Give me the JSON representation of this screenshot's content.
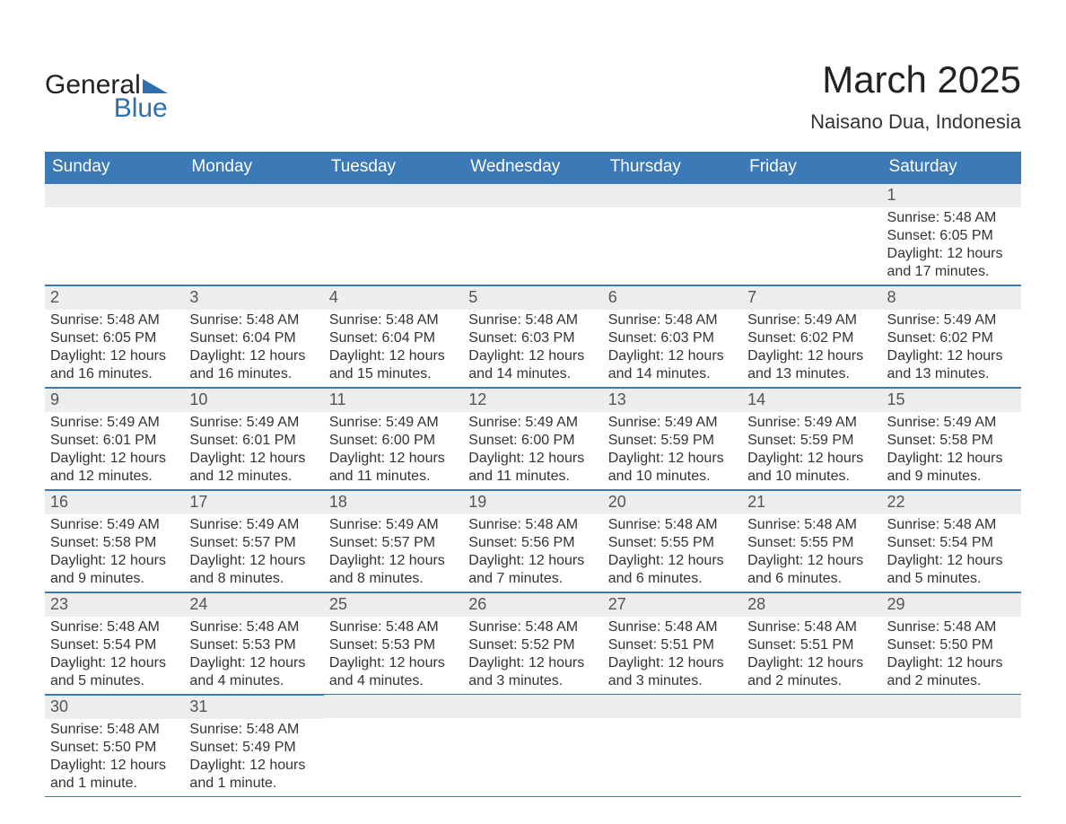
{
  "logo": {
    "text1": "General",
    "text2": "Blue"
  },
  "header": {
    "title": "March 2025",
    "location": "Naisano Dua, Indonesia"
  },
  "columns": [
    "Sunday",
    "Monday",
    "Tuesday",
    "Wednesday",
    "Thursday",
    "Friday",
    "Saturday"
  ],
  "colors": {
    "header_bg": "#3b79b7",
    "header_text": "#ffffff",
    "daynum_bg": "#ededed",
    "border": "#3b79b7",
    "text": "#333333",
    "logo_blue": "#2f6fb0"
  },
  "weeks": [
    [
      null,
      null,
      null,
      null,
      null,
      null,
      {
        "n": "1",
        "sr": "Sunrise: 5:48 AM",
        "ss": "Sunset: 6:05 PM",
        "d1": "Daylight: 12 hours",
        "d2": "and 17 minutes."
      }
    ],
    [
      {
        "n": "2",
        "sr": "Sunrise: 5:48 AM",
        "ss": "Sunset: 6:05 PM",
        "d1": "Daylight: 12 hours",
        "d2": "and 16 minutes."
      },
      {
        "n": "3",
        "sr": "Sunrise: 5:48 AM",
        "ss": "Sunset: 6:04 PM",
        "d1": "Daylight: 12 hours",
        "d2": "and 16 minutes."
      },
      {
        "n": "4",
        "sr": "Sunrise: 5:48 AM",
        "ss": "Sunset: 6:04 PM",
        "d1": "Daylight: 12 hours",
        "d2": "and 15 minutes."
      },
      {
        "n": "5",
        "sr": "Sunrise: 5:48 AM",
        "ss": "Sunset: 6:03 PM",
        "d1": "Daylight: 12 hours",
        "d2": "and 14 minutes."
      },
      {
        "n": "6",
        "sr": "Sunrise: 5:48 AM",
        "ss": "Sunset: 6:03 PM",
        "d1": "Daylight: 12 hours",
        "d2": "and 14 minutes."
      },
      {
        "n": "7",
        "sr": "Sunrise: 5:49 AM",
        "ss": "Sunset: 6:02 PM",
        "d1": "Daylight: 12 hours",
        "d2": "and 13 minutes."
      },
      {
        "n": "8",
        "sr": "Sunrise: 5:49 AM",
        "ss": "Sunset: 6:02 PM",
        "d1": "Daylight: 12 hours",
        "d2": "and 13 minutes."
      }
    ],
    [
      {
        "n": "9",
        "sr": "Sunrise: 5:49 AM",
        "ss": "Sunset: 6:01 PM",
        "d1": "Daylight: 12 hours",
        "d2": "and 12 minutes."
      },
      {
        "n": "10",
        "sr": "Sunrise: 5:49 AM",
        "ss": "Sunset: 6:01 PM",
        "d1": "Daylight: 12 hours",
        "d2": "and 12 minutes."
      },
      {
        "n": "11",
        "sr": "Sunrise: 5:49 AM",
        "ss": "Sunset: 6:00 PM",
        "d1": "Daylight: 12 hours",
        "d2": "and 11 minutes."
      },
      {
        "n": "12",
        "sr": "Sunrise: 5:49 AM",
        "ss": "Sunset: 6:00 PM",
        "d1": "Daylight: 12 hours",
        "d2": "and 11 minutes."
      },
      {
        "n": "13",
        "sr": "Sunrise: 5:49 AM",
        "ss": "Sunset: 5:59 PM",
        "d1": "Daylight: 12 hours",
        "d2": "and 10 minutes."
      },
      {
        "n": "14",
        "sr": "Sunrise: 5:49 AM",
        "ss": "Sunset: 5:59 PM",
        "d1": "Daylight: 12 hours",
        "d2": "and 10 minutes."
      },
      {
        "n": "15",
        "sr": "Sunrise: 5:49 AM",
        "ss": "Sunset: 5:58 PM",
        "d1": "Daylight: 12 hours",
        "d2": "and 9 minutes."
      }
    ],
    [
      {
        "n": "16",
        "sr": "Sunrise: 5:49 AM",
        "ss": "Sunset: 5:58 PM",
        "d1": "Daylight: 12 hours",
        "d2": "and 9 minutes."
      },
      {
        "n": "17",
        "sr": "Sunrise: 5:49 AM",
        "ss": "Sunset: 5:57 PM",
        "d1": "Daylight: 12 hours",
        "d2": "and 8 minutes."
      },
      {
        "n": "18",
        "sr": "Sunrise: 5:49 AM",
        "ss": "Sunset: 5:57 PM",
        "d1": "Daylight: 12 hours",
        "d2": "and 8 minutes."
      },
      {
        "n": "19",
        "sr": "Sunrise: 5:48 AM",
        "ss": "Sunset: 5:56 PM",
        "d1": "Daylight: 12 hours",
        "d2": "and 7 minutes."
      },
      {
        "n": "20",
        "sr": "Sunrise: 5:48 AM",
        "ss": "Sunset: 5:55 PM",
        "d1": "Daylight: 12 hours",
        "d2": "and 6 minutes."
      },
      {
        "n": "21",
        "sr": "Sunrise: 5:48 AM",
        "ss": "Sunset: 5:55 PM",
        "d1": "Daylight: 12 hours",
        "d2": "and 6 minutes."
      },
      {
        "n": "22",
        "sr": "Sunrise: 5:48 AM",
        "ss": "Sunset: 5:54 PM",
        "d1": "Daylight: 12 hours",
        "d2": "and 5 minutes."
      }
    ],
    [
      {
        "n": "23",
        "sr": "Sunrise: 5:48 AM",
        "ss": "Sunset: 5:54 PM",
        "d1": "Daylight: 12 hours",
        "d2": "and 5 minutes."
      },
      {
        "n": "24",
        "sr": "Sunrise: 5:48 AM",
        "ss": "Sunset: 5:53 PM",
        "d1": "Daylight: 12 hours",
        "d2": "and 4 minutes."
      },
      {
        "n": "25",
        "sr": "Sunrise: 5:48 AM",
        "ss": "Sunset: 5:53 PM",
        "d1": "Daylight: 12 hours",
        "d2": "and 4 minutes."
      },
      {
        "n": "26",
        "sr": "Sunrise: 5:48 AM",
        "ss": "Sunset: 5:52 PM",
        "d1": "Daylight: 12 hours",
        "d2": "and 3 minutes."
      },
      {
        "n": "27",
        "sr": "Sunrise: 5:48 AM",
        "ss": "Sunset: 5:51 PM",
        "d1": "Daylight: 12 hours",
        "d2": "and 3 minutes."
      },
      {
        "n": "28",
        "sr": "Sunrise: 5:48 AM",
        "ss": "Sunset: 5:51 PM",
        "d1": "Daylight: 12 hours",
        "d2": "and 2 minutes."
      },
      {
        "n": "29",
        "sr": "Sunrise: 5:48 AM",
        "ss": "Sunset: 5:50 PM",
        "d1": "Daylight: 12 hours",
        "d2": "and 2 minutes."
      }
    ],
    [
      {
        "n": "30",
        "sr": "Sunrise: 5:48 AM",
        "ss": "Sunset: 5:50 PM",
        "d1": "Daylight: 12 hours",
        "d2": "and 1 minute."
      },
      {
        "n": "31",
        "sr": "Sunrise: 5:48 AM",
        "ss": "Sunset: 5:49 PM",
        "d1": "Daylight: 12 hours",
        "d2": "and 1 minute."
      },
      null,
      null,
      null,
      null,
      null
    ]
  ]
}
